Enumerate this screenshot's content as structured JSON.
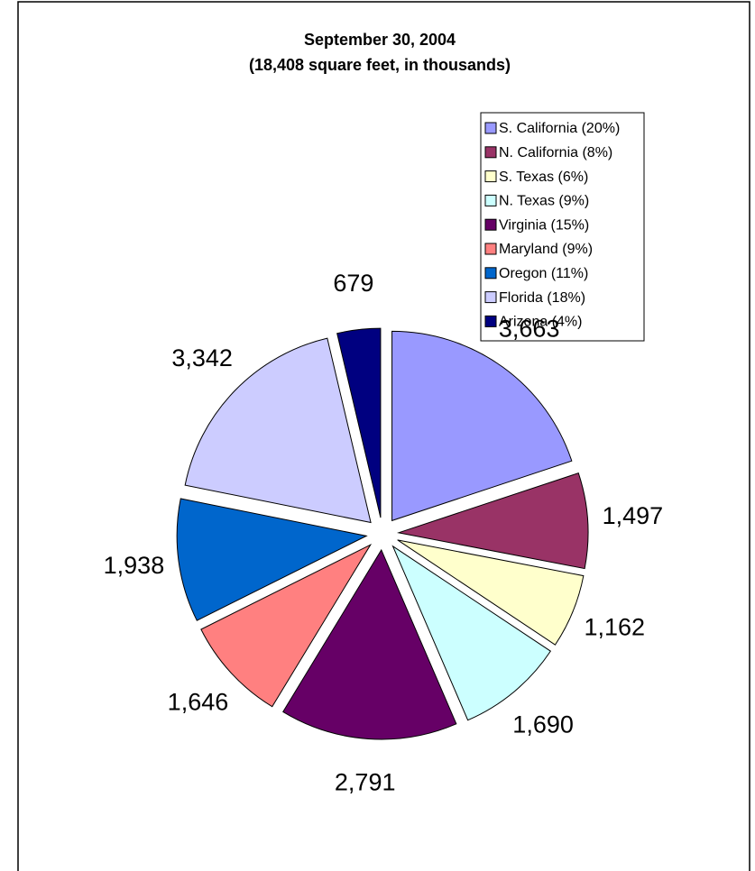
{
  "chart_data": {
    "type": "pie",
    "title": "September 30, 2004",
    "subtitle": "(18,408 square feet, in thousands)",
    "categories": [
      "S. California (20%)",
      "N. California (8%)",
      "S. Texas (6%)",
      "N. Texas (9%)",
      "Virginia (15%)",
      "Maryland (9%)",
      "Oregon (11%)",
      "Florida (18%)",
      "Arizona (4%)"
    ],
    "values": [
      3663,
      1497,
      1162,
      1690,
      2791,
      1646,
      1938,
      3342,
      679
    ],
    "value_labels": [
      "3,663",
      "1,497",
      "1,162",
      "1,690",
      "2,791",
      "1,646",
      "1,938",
      "3,342",
      "679"
    ],
    "colors": [
      "#9999ff",
      "#993366",
      "#ffffcc",
      "#ccffff",
      "#660066",
      "#ff8080",
      "#0066cc",
      "#ccccff",
      "#000080"
    ],
    "legend": "upper right"
  }
}
